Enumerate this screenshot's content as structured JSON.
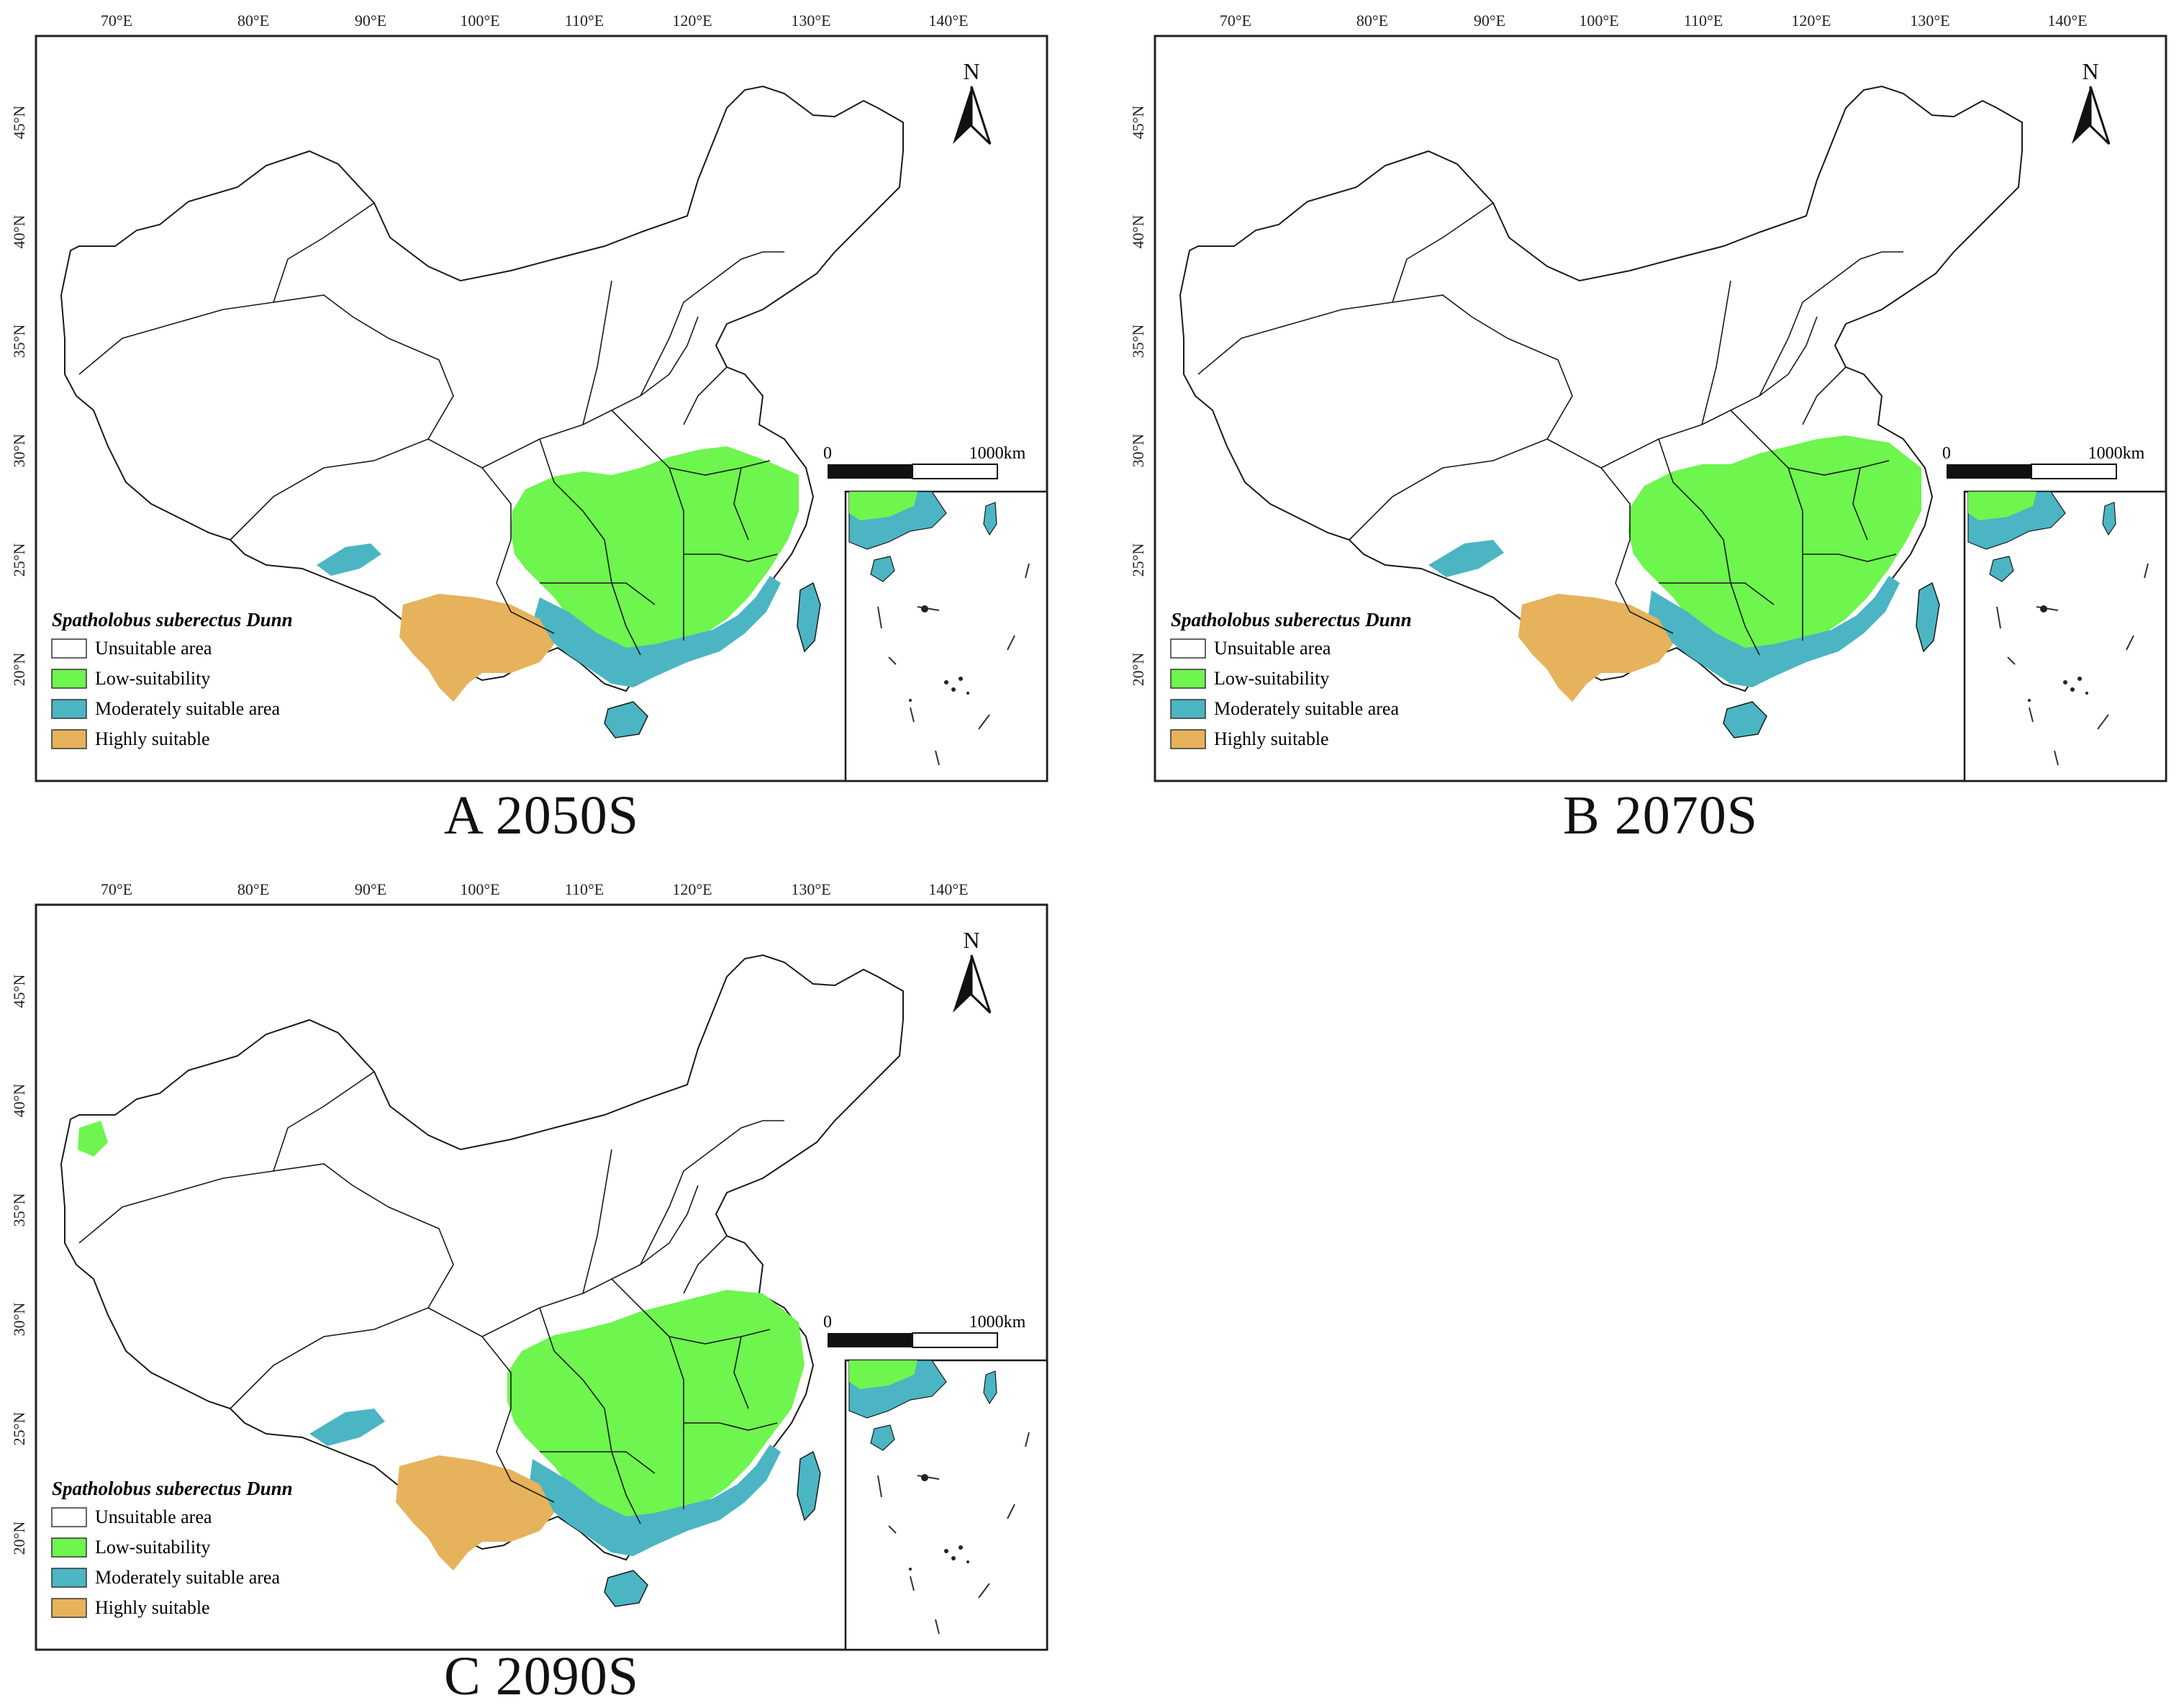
{
  "colors": {
    "unsuitable": "#ffffff",
    "low": "#6ef54e",
    "moderate": "#4bb5c4",
    "high": "#e6b25b",
    "boundary": "#1a1a1a"
  },
  "icons": {
    "north_arrow": "north-arrow-icon"
  },
  "panels": [
    {
      "caption": "A 2050S",
      "north": "N",
      "lon_ticks": [
        "70°E",
        "80°E",
        "90°E",
        "100°E",
        "110°E",
        "120°E",
        "130°E",
        "140°E"
      ],
      "lat_ticks": [
        "45°N",
        "40°N",
        "35°N",
        "30°N",
        "25°N",
        "20°N"
      ],
      "scale": {
        "start": "0",
        "end": "1000km"
      },
      "legend": {
        "title": "Spatholobus suberectus Dunn",
        "items": [
          "Unsuitable area",
          "Low-suitability",
          "Moderately suitable area",
          "Highly suitable"
        ]
      }
    },
    {
      "caption": "B 2070S",
      "north": "N",
      "lon_ticks": [
        "70°E",
        "80°E",
        "90°E",
        "100°E",
        "110°E",
        "120°E",
        "130°E",
        "140°E"
      ],
      "lat_ticks": [
        "45°N",
        "40°N",
        "35°N",
        "30°N",
        "25°N",
        "20°N"
      ],
      "scale": {
        "start": "0",
        "end": "1000km"
      },
      "legend": {
        "title": "Spatholobus suberectus Dunn",
        "items": [
          "Unsuitable area",
          "Low-suitability",
          "Moderately suitable area",
          "Highly suitable"
        ]
      }
    },
    {
      "caption": "C 2090S",
      "north": "N",
      "lon_ticks": [
        "70°E",
        "80°E",
        "90°E",
        "100°E",
        "110°E",
        "120°E",
        "130°E",
        "140°E"
      ],
      "lat_ticks": [
        "45°N",
        "40°N",
        "35°N",
        "30°N",
        "25°N",
        "20°N"
      ],
      "scale": {
        "start": "0",
        "end": "1000km"
      },
      "legend": {
        "title": "Spatholobus suberectus Dunn",
        "items": [
          "Unsuitable area",
          "Low-suitability",
          "Moderately suitable area",
          "Highly suitable"
        ]
      }
    }
  ]
}
